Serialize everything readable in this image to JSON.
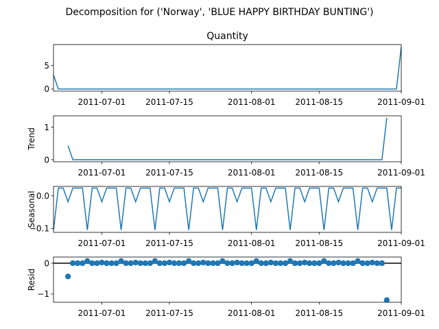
{
  "figure": {
    "suptitle": "Decomposition for ('Norway', 'BLUE HAPPY BIRTHDAY BUNTING')"
  },
  "colors": {
    "series": "#1f77b4",
    "zero_line": "#000000"
  },
  "chart_data": [
    {
      "type": "line",
      "title": "Quantity",
      "ylabel": "",
      "x_start": "2011-06-21",
      "x_end": "2011-09-01",
      "xlim": [
        "2011-06-21",
        "2011-09-01"
      ],
      "ylim": [
        -0.45,
        9.45
      ],
      "yticks": [
        0,
        5
      ],
      "ytick_labels": [
        "0",
        "5"
      ],
      "xtick_labels": [
        "2011-07-01",
        "2011-07-15",
        "2011-08-01",
        "2011-08-15",
        "2011-09-01"
      ],
      "xtick_dates": [
        "2011-07-01",
        "2011-07-15",
        "2011-08-01",
        "2011-08-15",
        "2011-09-01"
      ],
      "points": [
        [
          "2011-06-21",
          3
        ],
        [
          "2011-06-22",
          0
        ],
        [
          "2011-08-31",
          0
        ],
        [
          "2011-09-01",
          9
        ]
      ]
    },
    {
      "type": "line",
      "title": "",
      "ylabel": "Trend",
      "xlim": [
        "2011-06-21",
        "2011-09-01"
      ],
      "ylim": [
        -0.064,
        1.35
      ],
      "yticks": [
        0,
        1
      ],
      "ytick_labels": [
        "0",
        "1"
      ],
      "xtick_labels": [
        "2011-07-01",
        "2011-07-15",
        "2011-08-01",
        "2011-08-15",
        "2011-09-01"
      ],
      "xtick_dates": [
        "2011-07-01",
        "2011-07-15",
        "2011-08-01",
        "2011-08-15",
        "2011-09-01"
      ],
      "points": [
        [
          "2011-06-24",
          0.43
        ],
        [
          "2011-06-25",
          0
        ],
        [
          "2011-08-28",
          0
        ],
        [
          "2011-08-29",
          1.29
        ]
      ]
    },
    {
      "type": "line",
      "title": "",
      "ylabel": "Seasonal",
      "xlim": [
        "2011-06-21",
        "2011-09-01"
      ],
      "ylim": [
        -0.112,
        0.029
      ],
      "yticks": [
        0.0,
        -0.1
      ],
      "ytick_labels": [
        "0.0",
        "−0.1"
      ],
      "xtick_labels": [
        "2011-07-01",
        "2011-07-15",
        "2011-08-01",
        "2011-08-15",
        "2011-09-01"
      ],
      "xtick_dates": [
        "2011-07-01",
        "2011-07-15",
        "2011-08-01",
        "2011-08-15",
        "2011-09-01"
      ],
      "period": 7,
      "pattern": [
        -0.105,
        0.024,
        0.024,
        -0.018,
        0.024,
        0.024,
        0.024
      ]
    },
    {
      "type": "scatter",
      "title": "",
      "ylabel": "Resid",
      "xlim": [
        "2011-06-21",
        "2011-09-01"
      ],
      "ylim": [
        -1.27,
        0.2
      ],
      "yticks": [
        0,
        -1
      ],
      "ytick_labels": [
        "0",
        "−1"
      ],
      "xtick_labels": [
        "2011-07-01",
        "2011-07-15",
        "2011-08-01",
        "2011-08-15",
        "2011-09-01"
      ],
      "xtick_dates": [
        "2011-07-01",
        "2011-07-15",
        "2011-08-01",
        "2011-08-15",
        "2011-09-01"
      ],
      "zero_line": true,
      "points": [
        [
          "2011-06-24",
          -0.43
        ],
        [
          "2011-06-25",
          0.0
        ],
        [
          "2011-06-26",
          0.0
        ],
        [
          "2011-06-27",
          0.0
        ],
        [
          "2011-06-28",
          0.07
        ],
        [
          "2011-06-29",
          0.0
        ],
        [
          "2011-06-30",
          0.0
        ],
        [
          "2011-07-01",
          0.02
        ],
        [
          "2011-07-02",
          0.0
        ],
        [
          "2011-07-03",
          0.0
        ],
        [
          "2011-07-04",
          0.0
        ],
        [
          "2011-07-05",
          0.07
        ],
        [
          "2011-07-06",
          0.0
        ],
        [
          "2011-07-07",
          0.0
        ],
        [
          "2011-07-08",
          0.02
        ],
        [
          "2011-07-09",
          0.0
        ],
        [
          "2011-07-10",
          0.0
        ],
        [
          "2011-07-11",
          0.0
        ],
        [
          "2011-07-12",
          0.07
        ],
        [
          "2011-07-13",
          0.0
        ],
        [
          "2011-07-14",
          0.0
        ],
        [
          "2011-07-15",
          0.02
        ],
        [
          "2011-07-16",
          0.0
        ],
        [
          "2011-07-17",
          0.0
        ],
        [
          "2011-07-18",
          0.0
        ],
        [
          "2011-07-19",
          0.07
        ],
        [
          "2011-07-20",
          0.0
        ],
        [
          "2011-07-21",
          0.0
        ],
        [
          "2011-07-22",
          0.02
        ],
        [
          "2011-07-23",
          0.0
        ],
        [
          "2011-07-24",
          0.0
        ],
        [
          "2011-07-25",
          0.0
        ],
        [
          "2011-07-26",
          0.07
        ],
        [
          "2011-07-27",
          0.0
        ],
        [
          "2011-07-28",
          0.0
        ],
        [
          "2011-07-29",
          0.02
        ],
        [
          "2011-07-30",
          0.0
        ],
        [
          "2011-07-31",
          0.0
        ],
        [
          "2011-08-01",
          0.0
        ],
        [
          "2011-08-02",
          0.07
        ],
        [
          "2011-08-03",
          0.0
        ],
        [
          "2011-08-04",
          0.0
        ],
        [
          "2011-08-05",
          0.02
        ],
        [
          "2011-08-06",
          0.0
        ],
        [
          "2011-08-07",
          0.0
        ],
        [
          "2011-08-08",
          0.0
        ],
        [
          "2011-08-09",
          0.07
        ],
        [
          "2011-08-10",
          0.0
        ],
        [
          "2011-08-11",
          0.0
        ],
        [
          "2011-08-12",
          0.02
        ],
        [
          "2011-08-13",
          0.0
        ],
        [
          "2011-08-14",
          0.0
        ],
        [
          "2011-08-15",
          0.0
        ],
        [
          "2011-08-16",
          0.07
        ],
        [
          "2011-08-17",
          0.0
        ],
        [
          "2011-08-18",
          0.0
        ],
        [
          "2011-08-19",
          0.02
        ],
        [
          "2011-08-20",
          0.0
        ],
        [
          "2011-08-21",
          0.0
        ],
        [
          "2011-08-22",
          0.0
        ],
        [
          "2011-08-23",
          0.07
        ],
        [
          "2011-08-24",
          0.0
        ],
        [
          "2011-08-25",
          0.0
        ],
        [
          "2011-08-26",
          0.02
        ],
        [
          "2011-08-27",
          0.0
        ],
        [
          "2011-08-28",
          0.0
        ],
        [
          "2011-08-29",
          -1.2
        ]
      ]
    }
  ]
}
